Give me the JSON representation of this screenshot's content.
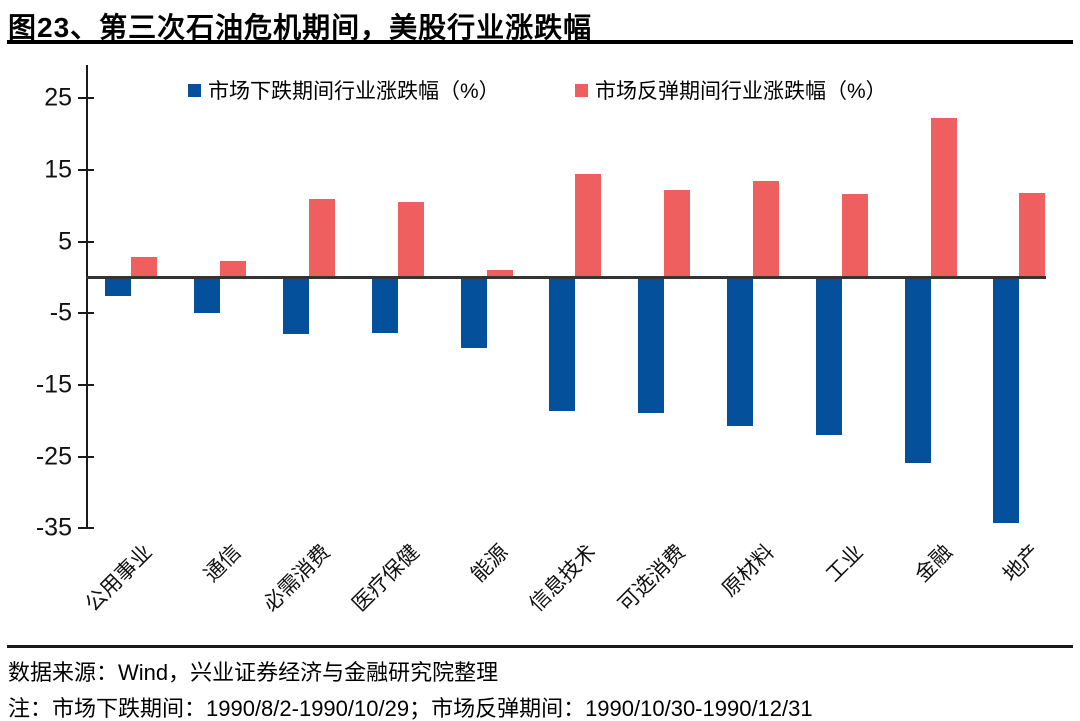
{
  "header": {
    "title": "图23、第三次石油危机期间，美股行业涨跌幅"
  },
  "chart_data": {
    "type": "bar",
    "title": "第三次石油危机期间，美股行业涨跌幅",
    "categories": [
      "公用事业",
      "通信",
      "必需消费",
      "医疗保健",
      "能源",
      "信息技术",
      "可选消费",
      "原材料",
      "工业",
      "金融",
      "地产"
    ],
    "series": [
      {
        "name": "市场下跌期间行业涨跌幅（%）",
        "color": "#05509B",
        "values": [
          -2.6,
          -5.0,
          -7.9,
          -7.8,
          -9.9,
          -18.6,
          -18.9,
          -20.7,
          -22.0,
          -25.9,
          -34.3
        ]
      },
      {
        "name": "市场反弹期间行业涨跌幅（%）",
        "color": "#F05F5F",
        "values": [
          2.9,
          2.3,
          11.0,
          10.5,
          1.0,
          14.4,
          12.2,
          13.4,
          11.7,
          22.2,
          11.8
        ]
      }
    ],
    "xlabel": "",
    "ylabel": "",
    "yticks": [
      25,
      15,
      5,
      -5,
      -15,
      -25,
      -35
    ],
    "ylim": [
      -35.5,
      29.8
    ],
    "grid": false,
    "legend_position": "top"
  },
  "footer": {
    "source_line": "数据来源：Wind，兴业证券经济与金融研究院整理",
    "note_line": "注：市场下跌期间：1990/8/2-1990/10/29；市场反弹期间：1990/10/30-1990/12/31"
  },
  "colors": {
    "decline_bar": "#05509B",
    "rebound_bar": "#F05F5F",
    "axis": "#1a1a1a",
    "zero_line": "#333333",
    "title_rule": "#000000"
  }
}
